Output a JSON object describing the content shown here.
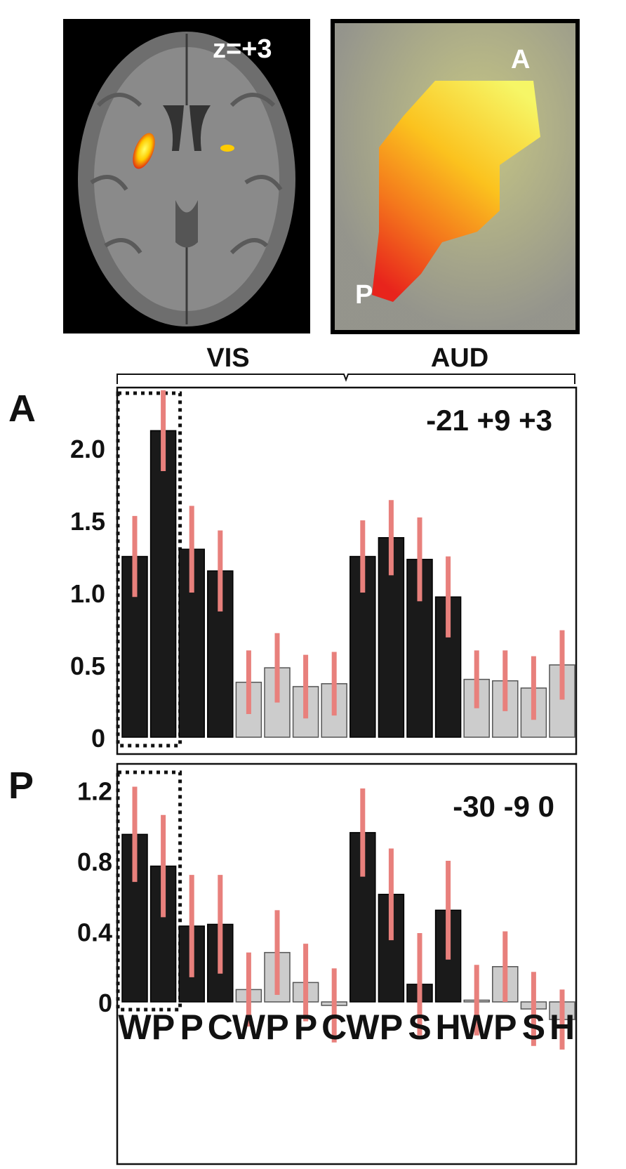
{
  "images": {
    "brain_slice_label": "z=+3",
    "zoom_anterior_label": "A",
    "zoom_posterior_label": "P"
  },
  "conditions": {
    "vis_label": "VIS",
    "aud_label": "AUD"
  },
  "colors": {
    "bar_active": "#1a1a1a",
    "bar_control": "#cccccc",
    "error_bar": "#e8807c"
  },
  "chart_data": [
    {
      "type": "bar",
      "panel_label": "A",
      "coordinates": "-21 +9 +3",
      "ylim": [
        0,
        2.35
      ],
      "yticks": [
        "0",
        "0.5",
        "1.0",
        "1.5",
        "2.0"
      ],
      "ytick_values": [
        0,
        0.5,
        1.0,
        1.5,
        2.0
      ],
      "groups": [
        "VIS",
        "VIS",
        "VIS",
        "VIS",
        "VIS",
        "VIS",
        "VIS",
        "VIS",
        "AUD",
        "AUD",
        "AUD",
        "AUD",
        "AUD",
        "AUD",
        "AUD",
        "AUD"
      ],
      "values": [
        1.25,
        2.12,
        1.3,
        1.15,
        0.38,
        0.48,
        0.35,
        0.37,
        1.25,
        1.38,
        1.23,
        0.97,
        0.4,
        0.39,
        0.34,
        0.5
      ],
      "errors": [
        0.28,
        0.28,
        0.3,
        0.28,
        0.22,
        0.24,
        0.22,
        0.22,
        0.25,
        0.26,
        0.29,
        0.28,
        0.2,
        0.21,
        0.22,
        0.24
      ],
      "highlight": [
        0,
        1
      ],
      "grid": false
    },
    {
      "type": "bar",
      "panel_label": "P",
      "coordinates": "-30 -9 0",
      "ylim": [
        -0.1,
        1.25
      ],
      "yticks": [
        "0",
        "0.4",
        "0.8",
        "1.2"
      ],
      "ytick_values": [
        0,
        0.4,
        0.8,
        1.2
      ],
      "categories": [
        "W",
        "P",
        "P",
        "C",
        "W",
        "P",
        "P",
        "C",
        "W",
        "P",
        "S",
        "H",
        "W",
        "P",
        "S",
        "H"
      ],
      "values": [
        0.95,
        0.77,
        0.43,
        0.44,
        0.07,
        0.28,
        0.11,
        -0.02,
        0.96,
        0.61,
        0.1,
        0.52,
        0.01,
        0.2,
        -0.04,
        -0.1
      ],
      "errors": [
        0.27,
        0.29,
        0.29,
        0.28,
        0.21,
        0.24,
        0.22,
        0.21,
        0.25,
        0.26,
        0.29,
        0.28,
        0.2,
        0.2,
        0.21,
        0.17
      ],
      "highlight": [
        0,
        1
      ],
      "grid": false
    }
  ]
}
